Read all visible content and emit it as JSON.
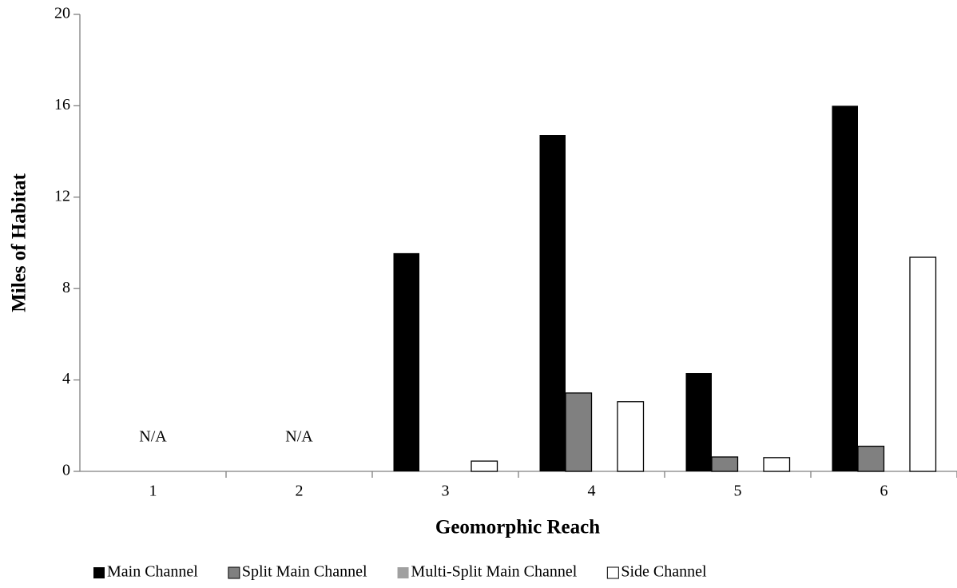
{
  "chart_data": {
    "type": "bar",
    "x_label": "Geomorphic Reach",
    "y_label": "Miles of Habitat",
    "categories": [
      "1",
      "2",
      "3",
      "4",
      "5",
      "6"
    ],
    "series": [
      {
        "name": "Main Channel",
        "color": "#000000",
        "values": [
          null,
          null,
          9.55,
          14.72,
          4.3,
          16.0
        ]
      },
      {
        "name": "Split Main Channel",
        "color": "#808080",
        "values": [
          null,
          null,
          0,
          3.43,
          0.63,
          1.1
        ]
      },
      {
        "name": "Multi-Split Main Channel",
        "color": "#a0a0a0",
        "values": [
          null,
          null,
          0,
          0,
          0,
          0
        ]
      },
      {
        "name": "Side Channel",
        "color": "#ffffff",
        "values": [
          null,
          null,
          0.45,
          3.05,
          0.6,
          9.37
        ]
      }
    ],
    "annotations": [
      {
        "text": "N/A",
        "category": 0
      },
      {
        "text": "N/A",
        "category": 1
      }
    ],
    "ylim": [
      0,
      20
    ],
    "yticks": [
      0,
      4,
      8,
      12,
      16,
      20
    ],
    "grid": false,
    "legend": "bottom"
  }
}
